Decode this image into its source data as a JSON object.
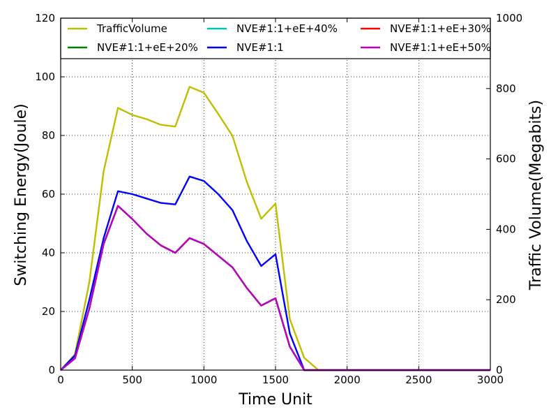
{
  "chart_data": {
    "type": "line",
    "title": "",
    "xlabel": "Time Unit",
    "ylabel": "Switching Energy(Joule)",
    "y2label": "Traffic Volume(Megabits)",
    "xlim": [
      0,
      3000
    ],
    "ylim": [
      0,
      120
    ],
    "y2lim": [
      0,
      1000
    ],
    "x_ticks": [
      0,
      500,
      1000,
      1500,
      2000,
      2500,
      3000
    ],
    "y_ticks": [
      0,
      20,
      40,
      60,
      80,
      100,
      120
    ],
    "y2_ticks": [
      0,
      200,
      400,
      600,
      800,
      1000
    ],
    "x_tick_labels": [
      "0",
      "500",
      "1000",
      "1500",
      "2000",
      "2500",
      "3000"
    ],
    "y_tick_labels": [
      "0",
      "20",
      "40",
      "60",
      "80",
      "100",
      "120"
    ],
    "y2_tick_labels": [
      "0",
      "200",
      "400",
      "600",
      "800",
      "1000"
    ],
    "grid": true,
    "legend_position": "top",
    "x": [
      0,
      100,
      200,
      300,
      400,
      500,
      600,
      700,
      800,
      900,
      1000,
      1100,
      1200,
      1300,
      1400,
      1500,
      1600,
      1700,
      1800,
      1900,
      2000,
      2100,
      2200,
      2300,
      2400,
      2500,
      2600,
      2700,
      2800,
      2900,
      3000
    ],
    "series": [
      {
        "name": "TrafficVolume",
        "axis": "right",
        "color": "#bfbf00",
        "values": [
          0,
          45,
          250,
          565,
          745,
          725,
          713,
          697,
          692,
          805,
          788,
          728,
          665,
          535,
          430,
          473,
          145,
          35,
          0,
          0,
          0,
          0,
          0,
          0,
          0,
          0,
          0,
          0,
          0,
          0,
          0
        ]
      },
      {
        "name": "NVE#1:1",
        "axis": "left",
        "color": "#0000ff",
        "values": [
          0,
          5,
          24,
          45,
          61,
          60,
          58.5,
          57,
          56.5,
          66,
          64.5,
          60,
          54.5,
          44,
          35.5,
          39.5,
          12.5,
          0,
          0,
          0,
          0,
          0,
          0,
          0,
          0,
          0,
          0,
          0,
          0,
          0,
          0
        ]
      },
      {
        "name": "NVE#1:1+eE+20%",
        "axis": "left",
        "color": "#008000",
        "values": [
          0,
          4,
          21,
          43,
          56,
          51.5,
          46.5,
          42.5,
          40,
          45,
          43,
          39,
          35,
          28,
          22,
          24.5,
          8,
          0,
          0,
          0,
          0,
          0,
          0,
          0,
          0,
          0,
          0,
          0,
          0,
          0,
          0
        ]
      },
      {
        "name": "NVE#1:1+eE+30%",
        "axis": "left",
        "color": "#ff0000",
        "values": [
          0,
          4,
          21,
          43,
          56,
          51.5,
          46.5,
          42.5,
          40,
          45,
          43,
          39,
          35,
          28,
          22,
          24.5,
          8,
          0,
          0,
          0,
          0,
          0,
          0,
          0,
          0,
          0,
          0,
          0,
          0,
          0,
          0
        ]
      },
      {
        "name": "NVE#1:1+eE+40%",
        "axis": "left",
        "color": "#00bfbf",
        "values": [
          0,
          4,
          21,
          43,
          56,
          51.5,
          46.5,
          42.5,
          40,
          45,
          43,
          39,
          35,
          28,
          22,
          24.5,
          8,
          0,
          0,
          0,
          0,
          0,
          0,
          0,
          0,
          0,
          0,
          0,
          0,
          0,
          0
        ]
      },
      {
        "name": "NVE#1:1+eE+50%",
        "axis": "left",
        "color": "#bf00bf",
        "values": [
          0,
          4,
          21,
          43,
          56,
          51.5,
          46.5,
          42.5,
          40,
          45,
          43,
          39,
          35,
          28,
          22,
          24.5,
          8,
          0,
          0,
          0,
          0,
          0,
          0,
          0,
          0,
          0,
          0,
          0,
          0,
          0,
          0
        ]
      }
    ],
    "legend_order": [
      0,
      2,
      4,
      1,
      3,
      5
    ]
  }
}
